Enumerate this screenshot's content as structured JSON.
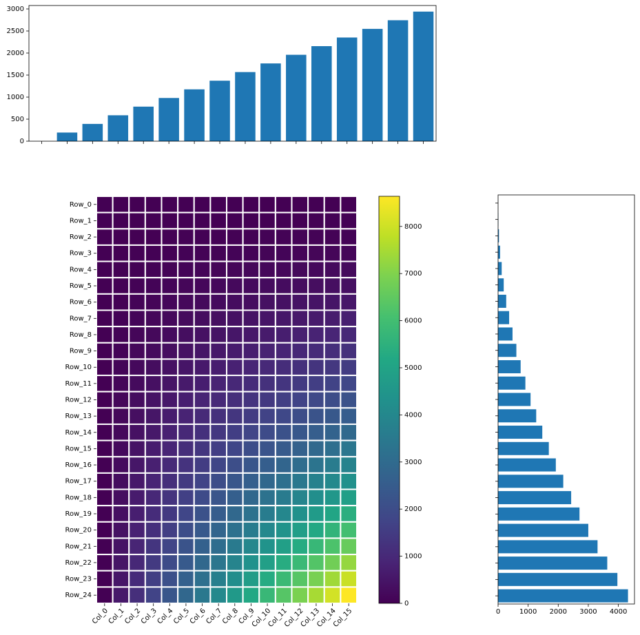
{
  "chart_data": [
    {
      "type": "heatmap",
      "x": [
        "Col_0",
        "Col_1",
        "Col_2",
        "Col_3",
        "Col_4",
        "Col_5",
        "Col_6",
        "Col_7",
        "Col_8",
        "Col_9",
        "Col_10",
        "Col_11",
        "Col_12",
        "Col_13",
        "Col_14",
        "Col_15"
      ],
      "y": [
        "Row_0",
        "Row_1",
        "Row_2",
        "Row_3",
        "Row_4",
        "Row_5",
        "Row_6",
        "Row_7",
        "Row_8",
        "Row_9",
        "Row_10",
        "Row_11",
        "Row_12",
        "Row_13",
        "Row_14",
        "Row_15",
        "Row_16",
        "Row_17",
        "Row_18",
        "Row_19",
        "Row_20",
        "Row_21",
        "Row_22",
        "Row_23",
        "Row_24"
      ],
      "values": [
        [
          0,
          0,
          0,
          0,
          0,
          0,
          0,
          0,
          0,
          0,
          0,
          0,
          0,
          0,
          0,
          0
        ],
        [
          0,
          1,
          2,
          3,
          4,
          5,
          6,
          7,
          8,
          9,
          10,
          11,
          12,
          13,
          14,
          15
        ],
        [
          0,
          4,
          8,
          12,
          16,
          20,
          24,
          28,
          32,
          36,
          40,
          44,
          48,
          52,
          56,
          60
        ],
        [
          0,
          9,
          18,
          27,
          36,
          45,
          54,
          63,
          72,
          81,
          90,
          99,
          108,
          117,
          126,
          135
        ],
        [
          0,
          16,
          32,
          48,
          64,
          80,
          96,
          112,
          128,
          144,
          160,
          176,
          192,
          208,
          224,
          240
        ],
        [
          0,
          25,
          50,
          75,
          100,
          125,
          150,
          175,
          200,
          225,
          250,
          275,
          300,
          325,
          350,
          375
        ],
        [
          0,
          36,
          72,
          108,
          144,
          180,
          216,
          252,
          288,
          324,
          360,
          396,
          432,
          468,
          504,
          540
        ],
        [
          0,
          49,
          98,
          147,
          196,
          245,
          294,
          343,
          392,
          441,
          490,
          539,
          588,
          637,
          686,
          735
        ],
        [
          0,
          64,
          128,
          192,
          256,
          320,
          384,
          448,
          512,
          576,
          640,
          704,
          768,
          832,
          896,
          960
        ],
        [
          0,
          81,
          162,
          243,
          324,
          405,
          486,
          567,
          648,
          729,
          810,
          891,
          972,
          1053,
          1134,
          1215
        ],
        [
          0,
          100,
          200,
          300,
          400,
          500,
          600,
          700,
          800,
          900,
          1000,
          1100,
          1200,
          1300,
          1400,
          1500
        ],
        [
          0,
          121,
          242,
          363,
          484,
          605,
          726,
          847,
          968,
          1089,
          1210,
          1331,
          1452,
          1573,
          1694,
          1815
        ],
        [
          0,
          144,
          288,
          432,
          576,
          720,
          864,
          1008,
          1152,
          1296,
          1440,
          1584,
          1728,
          1872,
          2016,
          2160
        ],
        [
          0,
          169,
          338,
          507,
          676,
          845,
          1014,
          1183,
          1352,
          1521,
          1690,
          1859,
          2028,
          2197,
          2366,
          2535
        ],
        [
          0,
          196,
          392,
          588,
          784,
          980,
          1176,
          1372,
          1568,
          1764,
          1960,
          2156,
          2352,
          2548,
          2744,
          2940
        ],
        [
          0,
          225,
          450,
          675,
          900,
          1125,
          1350,
          1575,
          1800,
          2025,
          2250,
          2475,
          2700,
          2925,
          3150,
          3375
        ],
        [
          0,
          256,
          512,
          768,
          1024,
          1280,
          1536,
          1792,
          2048,
          2304,
          2560,
          2816,
          3072,
          3328,
          3584,
          3840
        ],
        [
          0,
          289,
          578,
          867,
          1156,
          1445,
          1734,
          2023,
          2312,
          2601,
          2890,
          3179,
          3468,
          3757,
          4046,
          4335
        ],
        [
          0,
          324,
          648,
          972,
          1296,
          1620,
          1944,
          2268,
          2592,
          2916,
          3240,
          3564,
          3888,
          4212,
          4536,
          4860
        ],
        [
          0,
          361,
          722,
          1083,
          1444,
          1805,
          2166,
          2527,
          2888,
          3249,
          3610,
          3971,
          4332,
          4693,
          5054,
          5415
        ],
        [
          0,
          400,
          800,
          1200,
          1600,
          2000,
          2400,
          2800,
          3200,
          3600,
          4000,
          4400,
          4800,
          5200,
          5600,
          6000
        ],
        [
          0,
          441,
          882,
          1323,
          1764,
          2205,
          2646,
          3087,
          3528,
          3969,
          4410,
          4851,
          5292,
          5733,
          6174,
          6615
        ],
        [
          0,
          484,
          968,
          1452,
          1936,
          2420,
          2904,
          3388,
          3872,
          4356,
          4840,
          5324,
          5808,
          6292,
          6776,
          7260
        ],
        [
          0,
          529,
          1058,
          1587,
          2116,
          2645,
          3174,
          3703,
          4232,
          4761,
          5290,
          5819,
          6348,
          6877,
          7406,
          7935
        ],
        [
          0,
          576,
          1152,
          1728,
          2304,
          2880,
          3456,
          4032,
          4608,
          5184,
          5760,
          6336,
          6912,
          7488,
          8064,
          8640
        ]
      ],
      "colormap": "viridis",
      "clim": [
        0,
        8640
      ],
      "cticks": [
        0,
        1000,
        2000,
        3000,
        4000,
        5000,
        6000,
        7000,
        8000
      ]
    },
    {
      "type": "bar",
      "values": [
        0,
        196,
        392,
        588,
        784,
        980,
        1176,
        1372,
        1568,
        1764,
        1960,
        2156,
        2352,
        2548,
        2744,
        2940
      ],
      "color": "#1f77b4",
      "ylim": [
        0,
        3078
      ],
      "yticks": [
        0,
        500,
        1000,
        1500,
        2000,
        2500,
        3000
      ]
    },
    {
      "type": "barh",
      "values": [
        0,
        7.5,
        30,
        67.5,
        120,
        187.5,
        270,
        367.5,
        480,
        607.5,
        750,
        907.5,
        1080,
        1267.5,
        1470,
        1687.5,
        1920,
        2167.5,
        2430,
        2707.5,
        3000,
        3307.5,
        3630,
        3967.5,
        4320
      ],
      "color": "#1f77b4",
      "xlim": [
        0,
        4536
      ],
      "xticks": [
        0,
        1000,
        2000,
        3000,
        4000
      ]
    }
  ]
}
